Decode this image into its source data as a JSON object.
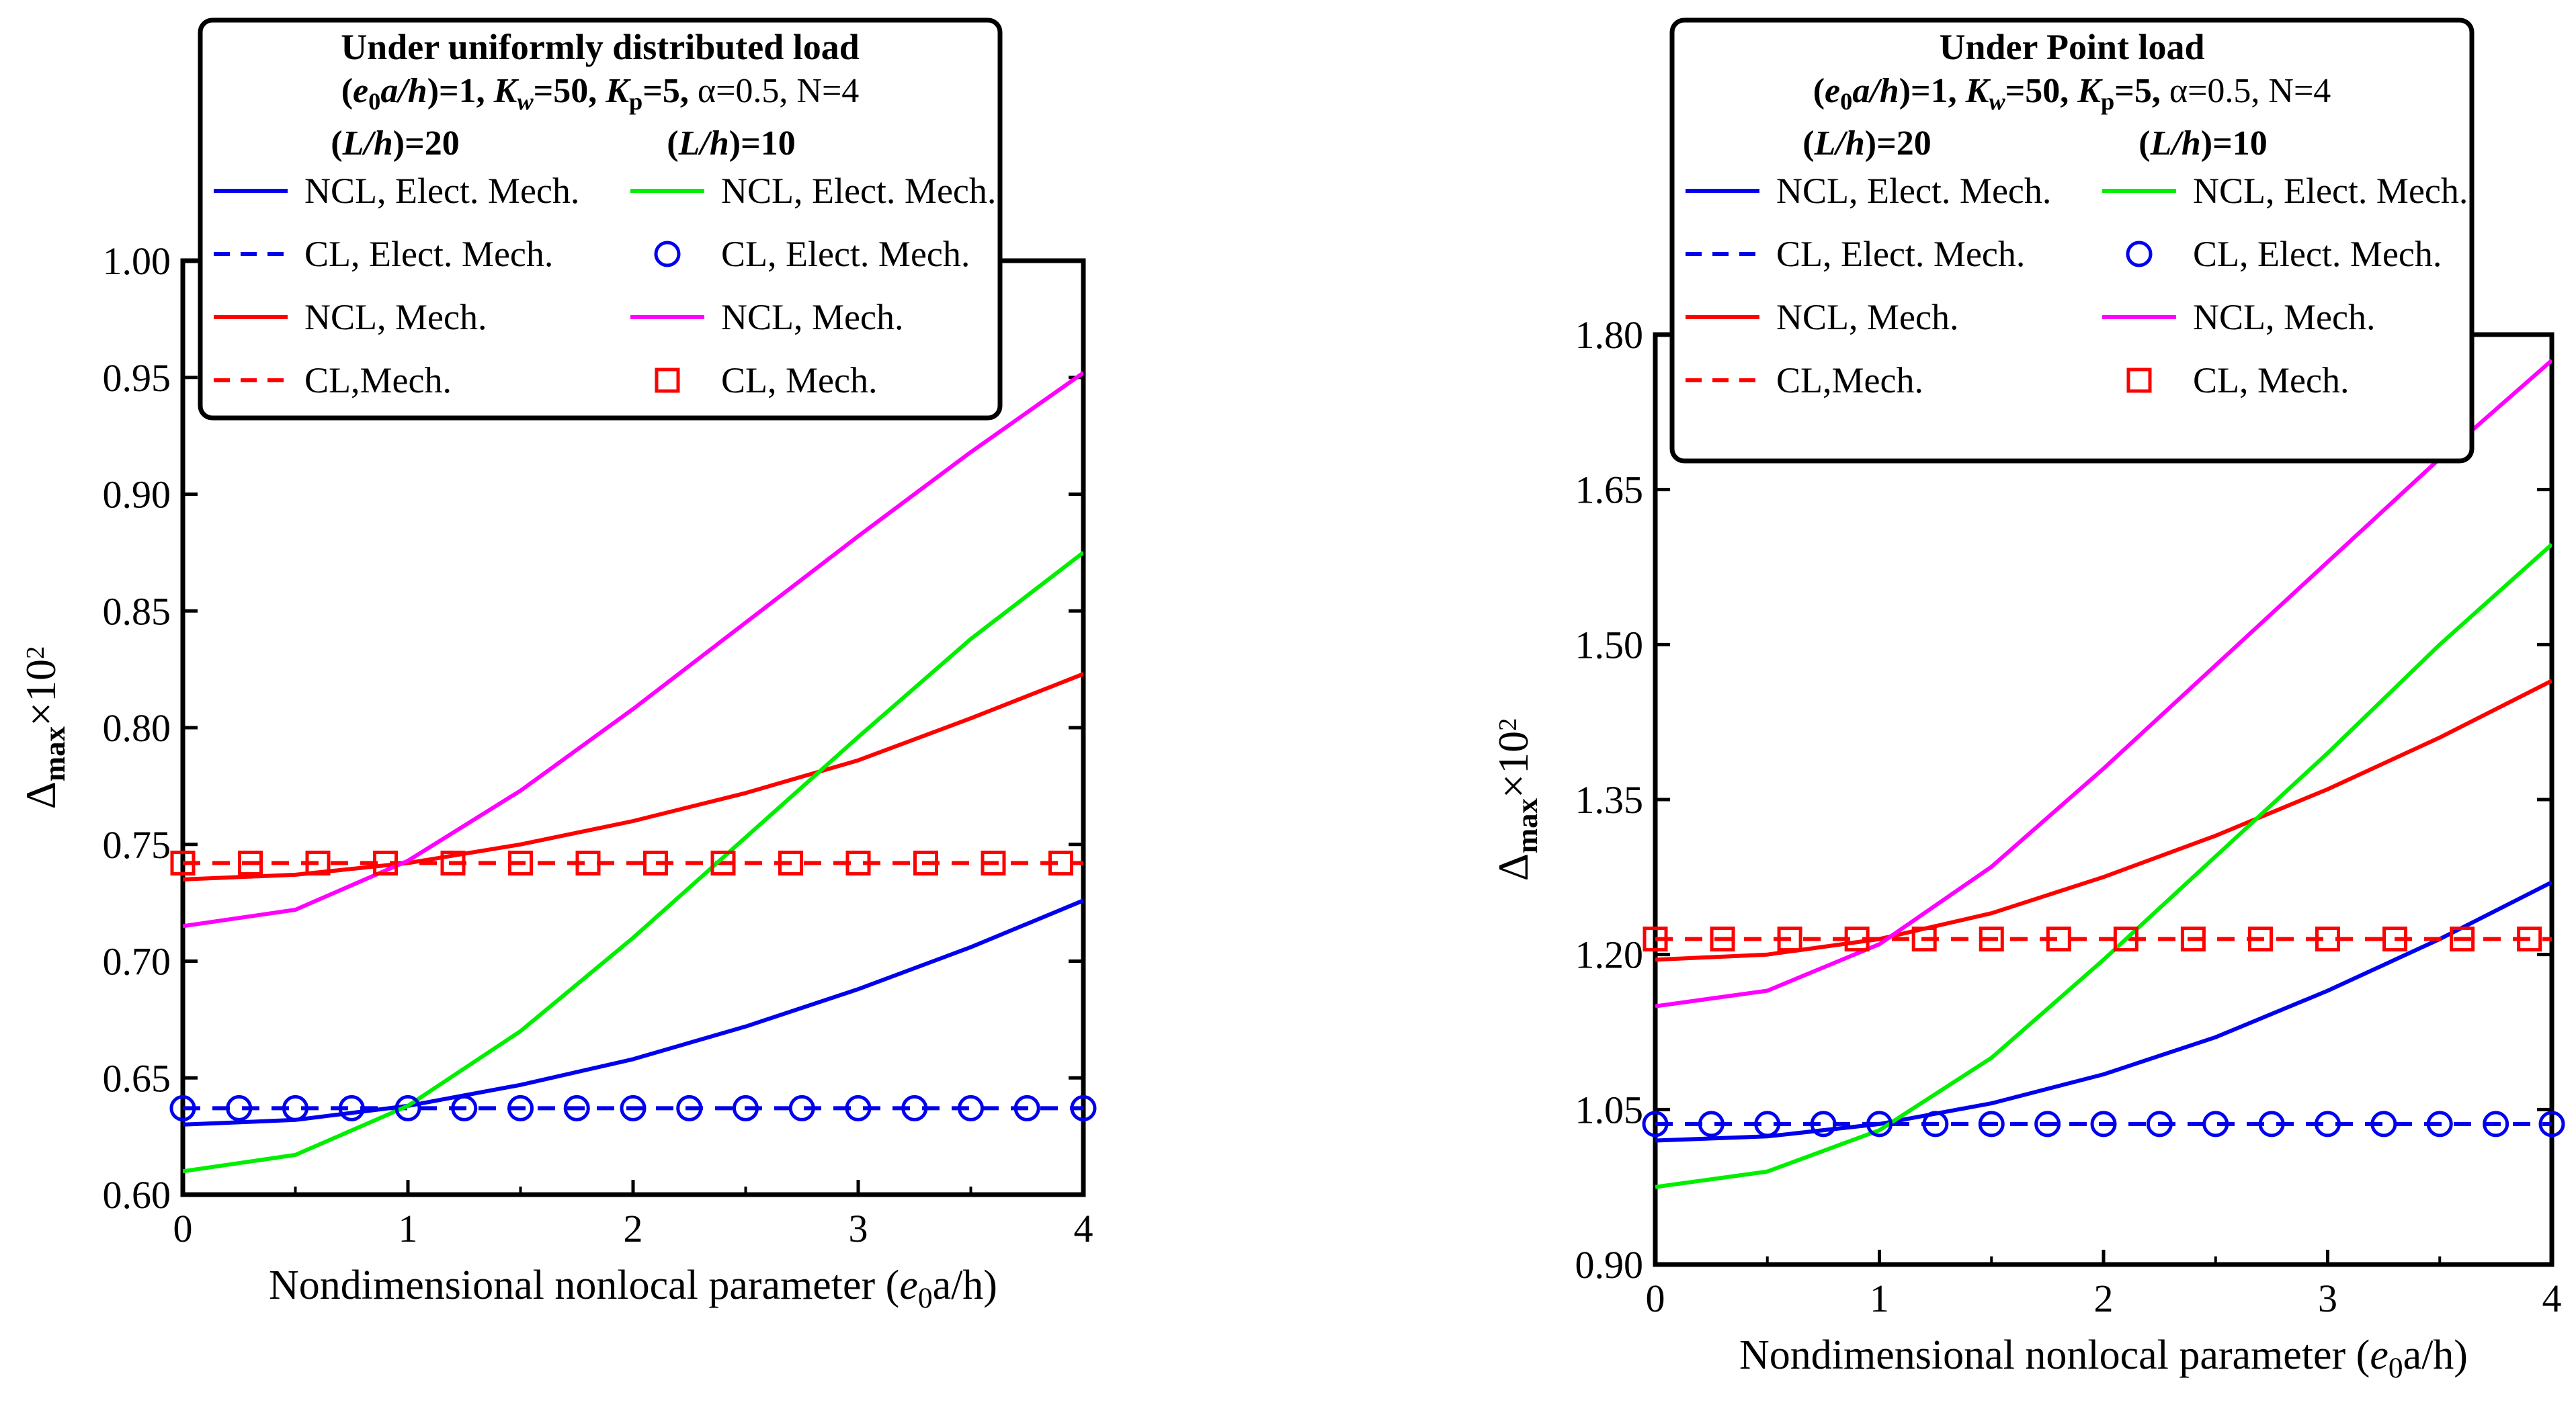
{
  "chart_data": [
    {
      "type": "line",
      "legend": {
        "title": "Under uniformly distributed load",
        "params": {
          "e0ah_label": "(e0a/h)=1",
          "kw_label": "Kw=50",
          "kp_label": "Kp=5",
          "alpha_label": "α=0.5",
          "n_label": "N=4"
        },
        "col_headers": [
          "(L/h)=20",
          "(L/h)=10"
        ],
        "placement": "top-center"
      },
      "xlabel": "Nondimensional nonlocal parameter (e0a/h)",
      "ylabel": "Δmax×10²",
      "xlim": [
        0,
        4
      ],
      "ylim": [
        0.6,
        1.0
      ],
      "xticks": [
        "0",
        "1",
        "2",
        "3",
        "4"
      ],
      "yticks": [
        "0.60",
        "0.65",
        "0.70",
        "0.75",
        "0.80",
        "0.85",
        "0.90",
        "0.95",
        "1.00"
      ],
      "series": [
        {
          "name": "NCL, Elect. Mech.",
          "group": "(L/h)=20",
          "color": "#0000ee",
          "style": "solid",
          "marker": "none",
          "x": [
            0,
            0.5,
            1,
            1.5,
            2,
            2.5,
            3,
            3.5,
            4
          ],
          "y": [
            0.63,
            0.632,
            0.638,
            0.647,
            0.658,
            0.672,
            0.688,
            0.706,
            0.726
          ]
        },
        {
          "name": "CL, Elect. Mech.",
          "group": "(L/h)=20",
          "color": "#0000ee",
          "style": "dashed",
          "marker": "none",
          "x": [
            0,
            4
          ],
          "y": [
            0.637,
            0.637
          ]
        },
        {
          "name": "NCL, Mech.",
          "group": "(L/h)=20",
          "color": "#ff0000",
          "style": "solid",
          "marker": "none",
          "x": [
            0,
            0.5,
            1,
            1.5,
            2,
            2.5,
            3,
            3.5,
            4
          ],
          "y": [
            0.735,
            0.737,
            0.742,
            0.75,
            0.76,
            0.772,
            0.786,
            0.804,
            0.823
          ]
        },
        {
          "name": "CL,Mech.",
          "group": "(L/h)=20",
          "color": "#ff0000",
          "style": "dashed",
          "marker": "none",
          "x": [
            0,
            4
          ],
          "y": [
            0.742,
            0.742
          ]
        },
        {
          "name": "NCL, Elect. Mech.",
          "group": "(L/h)=10",
          "color": "#00ee00",
          "style": "solid",
          "marker": "none",
          "x": [
            0,
            0.5,
            1,
            1.5,
            2,
            2.5,
            3,
            3.5,
            4
          ],
          "y": [
            0.61,
            0.617,
            0.638,
            0.67,
            0.71,
            0.753,
            0.796,
            0.838,
            0.875
          ]
        },
        {
          "name": "CL, Elect. Mech.",
          "group": "(L/h)=10",
          "color": "#0000ee",
          "style": "none",
          "marker": "circle",
          "x": [
            0,
            0.25,
            0.5,
            0.75,
            1,
            1.25,
            1.5,
            1.75,
            2,
            2.25,
            2.5,
            2.75,
            3,
            3.25,
            3.5,
            3.75,
            4
          ],
          "y": [
            0.637,
            0.637,
            0.637,
            0.637,
            0.637,
            0.637,
            0.637,
            0.637,
            0.637,
            0.637,
            0.637,
            0.637,
            0.637,
            0.637,
            0.637,
            0.637,
            0.637
          ]
        },
        {
          "name": "NCL, Mech.",
          "group": "(L/h)=10",
          "color": "#ff00ff",
          "style": "solid",
          "marker": "none",
          "x": [
            0,
            0.5,
            1,
            1.5,
            2,
            2.5,
            3,
            3.5,
            4
          ],
          "y": [
            0.715,
            0.722,
            0.743,
            0.773,
            0.808,
            0.845,
            0.882,
            0.918,
            0.952
          ]
        },
        {
          "name": "CL, Mech.",
          "group": "(L/h)=10",
          "color": "#ff0000",
          "style": "none",
          "marker": "square",
          "x": [
            0,
            0.3,
            0.6,
            0.9,
            1.2,
            1.5,
            1.8,
            2.1,
            2.4,
            2.7,
            3.0,
            3.3,
            3.6,
            3.9
          ],
          "y": [
            0.742,
            0.742,
            0.742,
            0.742,
            0.742,
            0.742,
            0.742,
            0.742,
            0.742,
            0.742,
            0.742,
            0.742,
            0.742,
            0.742
          ]
        }
      ]
    },
    {
      "type": "line",
      "legend": {
        "title": "Under Point load",
        "params": {
          "e0ah_label": "(e0a/h)=1",
          "kw_label": "Kw=50",
          "kp_label": "Kp=5",
          "alpha_label": "α=0.5",
          "n_label": "N=4"
        },
        "col_headers": [
          "(L/h)=20",
          "(L/h)=10"
        ],
        "placement": "top-center"
      },
      "xlabel": "Nondimensional nonlocal parameter (e0a/h)",
      "ylabel": "Δmax×10²",
      "xlim": [
        0,
        4
      ],
      "ylim": [
        0.9,
        1.8
      ],
      "xticks": [
        "0",
        "1",
        "2",
        "3",
        "4"
      ],
      "yticks": [
        "0.90",
        "1.05",
        "1.20",
        "1.35",
        "1.50",
        "1.65",
        "1.80"
      ],
      "series": [
        {
          "name": "NCL, Elect. Mech.",
          "group": "(L/h)=20",
          "color": "#0000ee",
          "style": "solid",
          "marker": "none",
          "x": [
            0,
            0.5,
            1,
            1.5,
            2,
            2.5,
            3,
            3.5,
            4
          ],
          "y": [
            1.02,
            1.024,
            1.036,
            1.056,
            1.084,
            1.12,
            1.165,
            1.215,
            1.27
          ]
        },
        {
          "name": "CL, Elect. Mech.",
          "group": "(L/h)=20",
          "color": "#0000ee",
          "style": "dashed",
          "marker": "none",
          "x": [
            0,
            4
          ],
          "y": [
            1.036,
            1.036
          ]
        },
        {
          "name": "NCL, Mech.",
          "group": "(L/h)=20",
          "color": "#ff0000",
          "style": "solid",
          "marker": "none",
          "x": [
            0,
            0.5,
            1,
            1.5,
            2,
            2.5,
            3,
            3.5,
            4
          ],
          "y": [
            1.195,
            1.2,
            1.215,
            1.24,
            1.275,
            1.315,
            1.36,
            1.41,
            1.465
          ]
        },
        {
          "name": "CL,Mech.",
          "group": "(L/h)=20",
          "color": "#ff0000",
          "style": "dashed",
          "marker": "none",
          "x": [
            0,
            4
          ],
          "y": [
            1.215,
            1.215
          ]
        },
        {
          "name": "NCL, Elect. Mech.",
          "group": "(L/h)=10",
          "color": "#00ee00",
          "style": "solid",
          "marker": "none",
          "x": [
            0,
            0.5,
            1,
            1.5,
            2,
            2.5,
            3,
            3.5,
            4
          ],
          "y": [
            0.975,
            0.99,
            1.03,
            1.1,
            1.195,
            1.295,
            1.395,
            1.5,
            1.597
          ]
        },
        {
          "name": "CL, Elect. Mech.",
          "group": "(L/h)=10",
          "color": "#0000ee",
          "style": "none",
          "marker": "circle",
          "x": [
            0,
            0.25,
            0.5,
            0.75,
            1,
            1.25,
            1.5,
            1.75,
            2,
            2.25,
            2.5,
            2.75,
            3,
            3.25,
            3.5,
            3.75,
            4
          ],
          "y": [
            1.036,
            1.036,
            1.036,
            1.036,
            1.036,
            1.036,
            1.036,
            1.036,
            1.036,
            1.036,
            1.036,
            1.036,
            1.036,
            1.036,
            1.036,
            1.036,
            1.036
          ]
        },
        {
          "name": "NCL, Mech.",
          "group": "(L/h)=10",
          "color": "#ff00ff",
          "style": "solid",
          "marker": "none",
          "x": [
            0,
            0.5,
            1,
            1.5,
            2,
            2.5,
            3,
            3.5,
            4
          ],
          "y": [
            1.15,
            1.165,
            1.21,
            1.285,
            1.38,
            1.48,
            1.58,
            1.68,
            1.775
          ]
        },
        {
          "name": "CL, Mech.",
          "group": "(L/h)=10",
          "color": "#ff0000",
          "style": "none",
          "marker": "square",
          "x": [
            0,
            0.3,
            0.6,
            0.9,
            1.2,
            1.5,
            1.8,
            2.1,
            2.4,
            2.7,
            3.0,
            3.3,
            3.6,
            3.9
          ],
          "y": [
            1.215,
            1.215,
            1.215,
            1.215,
            1.215,
            1.215,
            1.215,
            1.215,
            1.215,
            1.215,
            1.215,
            1.215,
            1.215,
            1.215
          ]
        }
      ]
    }
  ]
}
